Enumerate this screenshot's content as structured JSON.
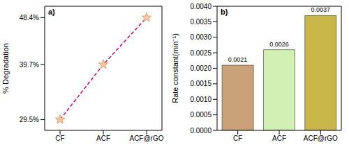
{
  "chart_data": [
    {
      "type": "line",
      "title": "a)",
      "y_label": "% Degradation",
      "categories": [
        "CF",
        "ACF",
        "ACF@rGO"
      ],
      "values": [
        29.5,
        39.7,
        48.4
      ],
      "color": "#d4007a",
      "line_style": "dashed",
      "marker": "star",
      "ylim": [
        27.5,
        50.5
      ],
      "yticks": [
        {
          "value": 29.5,
          "label": "29.5%"
        },
        {
          "value": 39.7,
          "label": "39.7%"
        },
        {
          "value": 48.4,
          "label": "48.4%"
        }
      ],
      "grid": false
    },
    {
      "type": "bar",
      "title": "b)",
      "y_label": "Rate constant(min⁻¹)",
      "categories": [
        "CF",
        "ACF",
        "ACF@rGO"
      ],
      "values": [
        0.0021,
        0.0026,
        0.0037
      ],
      "colors": [
        "#c9a27a",
        "#d2efb4",
        "#c9b648"
      ],
      "ylim": [
        0,
        0.004
      ],
      "yticks": [
        {
          "value": 0,
          "label": "0.0000"
        },
        {
          "value": 0.0005,
          "label": "0.0005"
        },
        {
          "value": 0.001,
          "label": "0.0010"
        },
        {
          "value": 0.0015,
          "label": "0.0015"
        },
        {
          "value": 0.002,
          "label": "0.0020"
        },
        {
          "value": 0.0025,
          "label": "0.0025"
        },
        {
          "value": 0.003,
          "label": "0.0030"
        },
        {
          "value": 0.0035,
          "label": "0.0035"
        },
        {
          "value": 0.004,
          "label": "0.0040"
        }
      ],
      "data_labels": true,
      "grid": false
    }
  ]
}
